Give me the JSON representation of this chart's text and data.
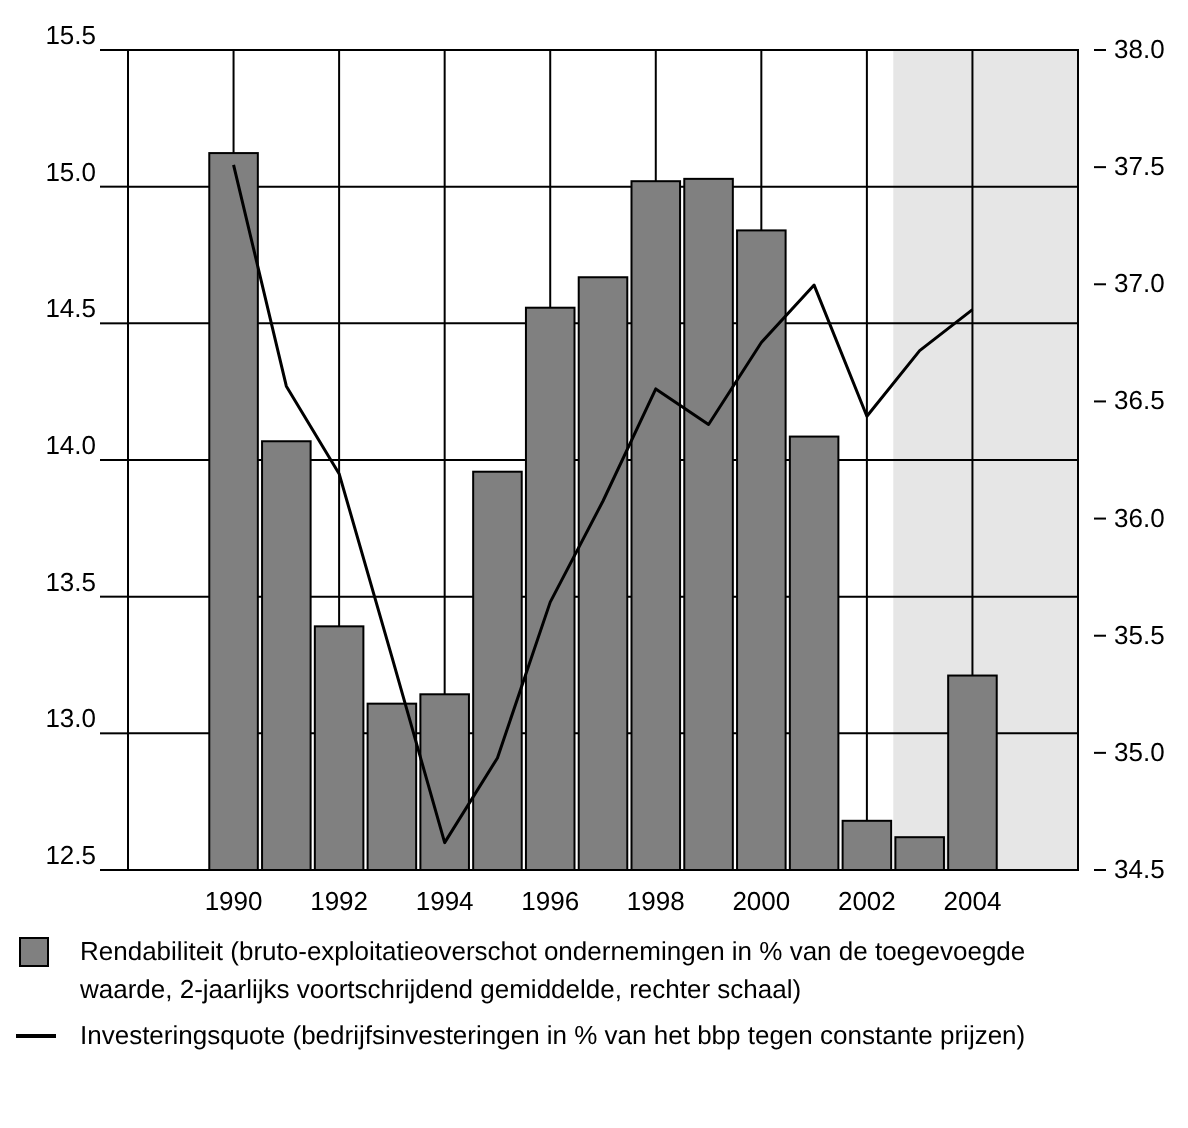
{
  "chart_data": {
    "type": "bar",
    "x": [
      1990,
      1991,
      1992,
      1993,
      1994,
      1995,
      1996,
      1997,
      1998,
      1999,
      2000,
      2001,
      2002,
      2003,
      2004
    ],
    "series": [
      {
        "axis": "y2",
        "name": "Rendabiliteit (bruto-exploitatieoverschot ondernemingen in % van de toegevoegde waarde, 2-jaarlijks voortschrijdend gemiddelde, rechter schaal)",
        "color": "#808080",
        "values": [
          37.56,
          36.33,
          35.54,
          35.21,
          35.25,
          36.2,
          36.9,
          37.03,
          37.44,
          37.45,
          37.23,
          36.35,
          34.71,
          34.64,
          35.33
        ]
      },
      {
        "type": "line",
        "axis": "y",
        "name": "Investeringsquote (bedrijfsinvesteringen in % van het bbp tegen constante prijzen)",
        "color": "#000000",
        "values": [
          15.08,
          14.27,
          13.95,
          13.28,
          12.6,
          12.91,
          13.48,
          13.85,
          14.26,
          14.13,
          14.43,
          14.64,
          14.16,
          14.4,
          14.55
        ]
      }
    ],
    "xlim": [
      1988,
      2006
    ],
    "xticks": [
      1990,
      1992,
      1994,
      1996,
      1998,
      2000,
      2002,
      2004
    ],
    "ylim": [
      12.5,
      15.5
    ],
    "yticks": [
      {
        "value": 12.5,
        "label": "12.5"
      },
      {
        "value": 13,
        "label": "13.0"
      },
      {
        "value": 13.5,
        "label": "13.5"
      },
      {
        "value": 14,
        "label": "14.0"
      },
      {
        "value": 14.5,
        "label": "14.5"
      },
      {
        "value": 15,
        "label": "15.0"
      },
      {
        "value": 15.5,
        "label": "15.5"
      }
    ],
    "y2lim": [
      34.5,
      38
    ],
    "y2ticks": [
      34.5,
      {
        "value": 35,
        "label": "35.0"
      },
      35.5,
      {
        "value": 36,
        "label": "36.0"
      },
      36.5,
      {
        "value": 37,
        "label": "37.0"
      },
      37.5,
      {
        "value": 38,
        "label": "38.0"
      }
    ],
    "bands": [
      {
        "axis": "x",
        "from": 2002.5,
        "to": 2006,
        "color": "#e6e6e6"
      }
    ],
    "grid": true,
    "legend": "bottom"
  }
}
